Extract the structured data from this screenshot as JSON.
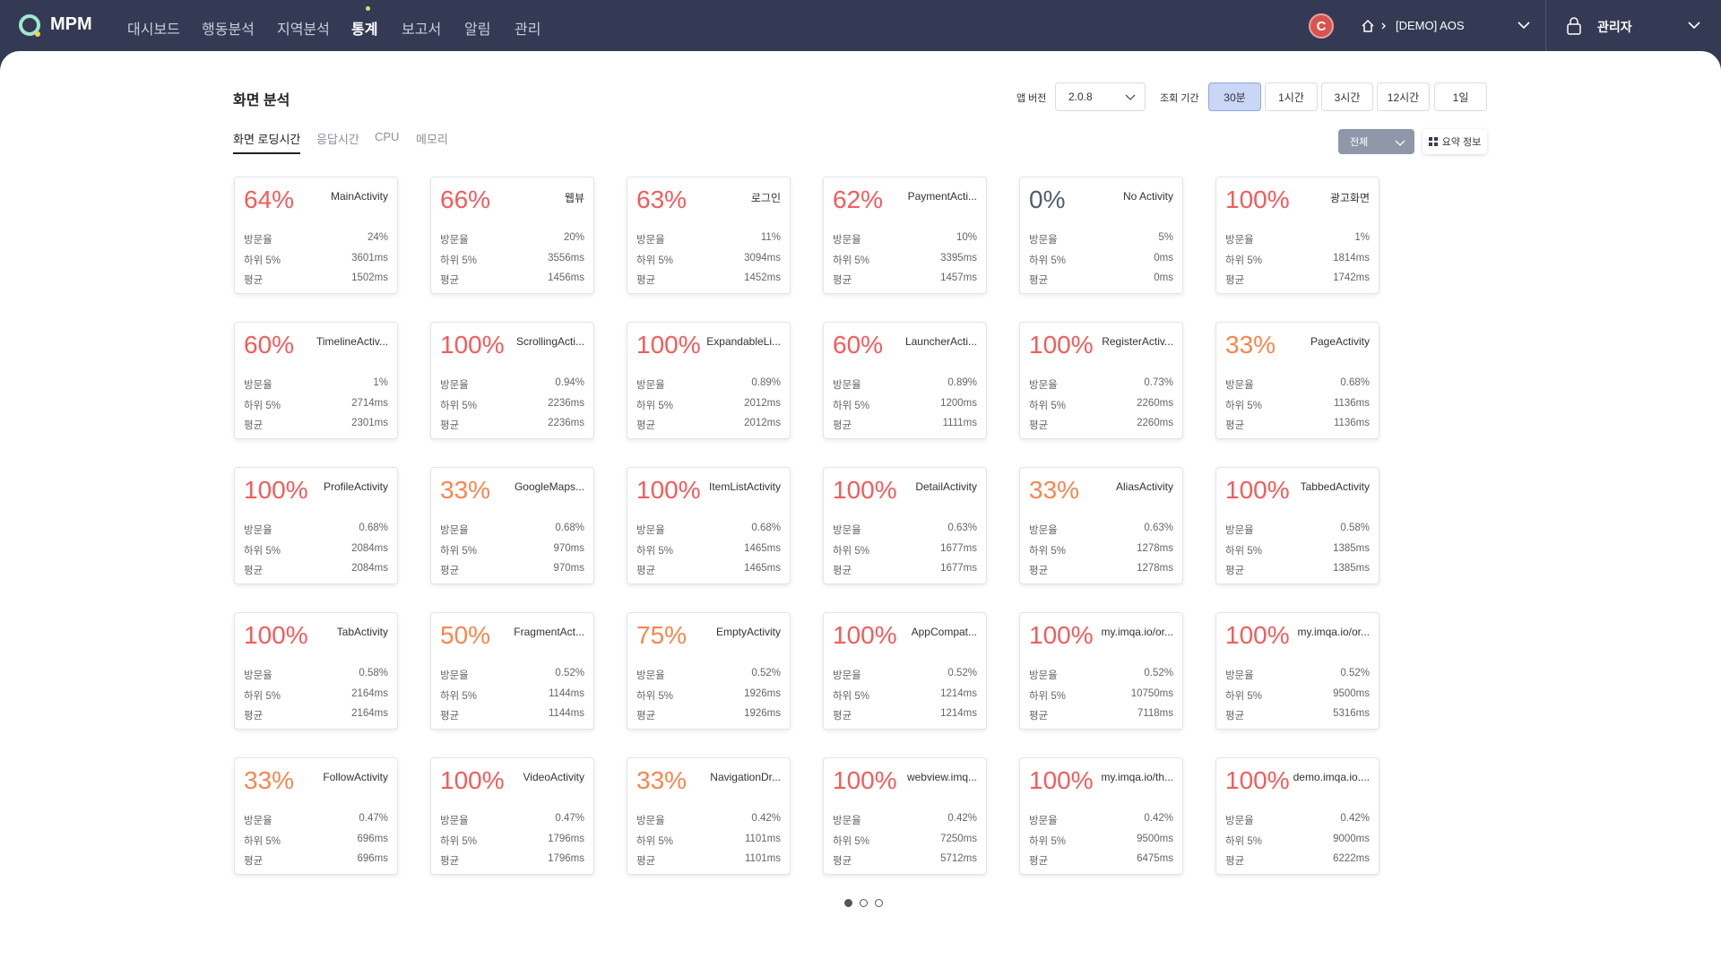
{
  "header": {
    "logo": "MPM",
    "nav": [
      "대시보드",
      "행동분석",
      "지역분석",
      "통계",
      "보고서",
      "알림",
      "관리"
    ],
    "active_nav": 3,
    "avatar": "C",
    "project": "[DEMO] AOS",
    "user": "관리자"
  },
  "toolbar": {
    "title": "화면 분석",
    "version_label": "앱 버전",
    "version": "2.0.8",
    "period_label": "조회 기간",
    "periods": [
      "30분",
      "1시간",
      "3시간",
      "12시간",
      "1일"
    ],
    "active_period": 0,
    "tabs": [
      "화면 로딩시간",
      "응답시간",
      "CPU",
      "메모리"
    ],
    "active_tab": 0,
    "filter": "전체",
    "summary": "요약 정보"
  },
  "row_labels": [
    "방문율",
    "하위 5%",
    "평균"
  ],
  "cards": [
    {
      "percent": "64%",
      "color": "#f25c5c",
      "name": "MainActivity",
      "values": [
        "24%",
        "3601ms",
        "1502ms"
      ]
    },
    {
      "percent": "66%",
      "color": "#f25c5c",
      "name": "웹뷰",
      "values": [
        "20%",
        "3556ms",
        "1456ms"
      ]
    },
    {
      "percent": "63%",
      "color": "#f25c5c",
      "name": "로그인",
      "values": [
        "11%",
        "3094ms",
        "1452ms"
      ]
    },
    {
      "percent": "62%",
      "color": "#f25c5c",
      "name": "PaymentActi...",
      "values": [
        "10%",
        "3395ms",
        "1457ms"
      ]
    },
    {
      "percent": "0%",
      "color": "#555b6e",
      "name": "No Activity",
      "values": [
        "5%",
        "0ms",
        "0ms"
      ]
    },
    {
      "percent": "100%",
      "color": "#f25c5c",
      "name": "광고화면",
      "values": [
        "1%",
        "1814ms",
        "1742ms"
      ]
    },
    {
      "percent": "60%",
      "color": "#f25c5c",
      "name": "TimelineActiv...",
      "values": [
        "1%",
        "2714ms",
        "2301ms"
      ]
    },
    {
      "percent": "100%",
      "color": "#f25c5c",
      "name": "ScrollingActi...",
      "values": [
        "0.94%",
        "2236ms",
        "2236ms"
      ]
    },
    {
      "percent": "100%",
      "color": "#f25c5c",
      "name": "ExpandableLi...",
      "values": [
        "0.89%",
        "2012ms",
        "2012ms"
      ]
    },
    {
      "percent": "60%",
      "color": "#f25c5c",
      "name": "LauncherActi...",
      "values": [
        "0.89%",
        "1200ms",
        "1111ms"
      ]
    },
    {
      "percent": "100%",
      "color": "#f25c5c",
      "name": "RegisterActiv...",
      "values": [
        "0.73%",
        "2260ms",
        "2260ms"
      ]
    },
    {
      "percent": "33%",
      "color": "#f5874f",
      "name": "PageActivity",
      "values": [
        "0.68%",
        "1136ms",
        "1136ms"
      ]
    },
    {
      "percent": "100%",
      "color": "#f25c5c",
      "name": "ProfileActivity",
      "values": [
        "0.68%",
        "2084ms",
        "2084ms"
      ]
    },
    {
      "percent": "33%",
      "color": "#f5874f",
      "name": "GoogleMaps...",
      "values": [
        "0.68%",
        "970ms",
        "970ms"
      ]
    },
    {
      "percent": "100%",
      "color": "#f25c5c",
      "name": "ItemListActivity",
      "values": [
        "0.68%",
        "1465ms",
        "1465ms"
      ]
    },
    {
      "percent": "100%",
      "color": "#f25c5c",
      "name": "DetailActivity",
      "values": [
        "0.63%",
        "1677ms",
        "1677ms"
      ]
    },
    {
      "percent": "33%",
      "color": "#f5874f",
      "name": "AliasActivity",
      "values": [
        "0.63%",
        "1278ms",
        "1278ms"
      ]
    },
    {
      "percent": "100%",
      "color": "#f25c5c",
      "name": "TabbedActivity",
      "values": [
        "0.58%",
        "1385ms",
        "1385ms"
      ]
    },
    {
      "percent": "100%",
      "color": "#f25c5c",
      "name": "TabActivity",
      "values": [
        "0.58%",
        "2164ms",
        "2164ms"
      ]
    },
    {
      "percent": "50%",
      "color": "#f5874f",
      "name": "FragmentAct...",
      "values": [
        "0.52%",
        "1144ms",
        "1144ms"
      ]
    },
    {
      "percent": "75%",
      "color": "#f5874f",
      "name": "EmptyActivity",
      "values": [
        "0.52%",
        "1926ms",
        "1926ms"
      ]
    },
    {
      "percent": "100%",
      "color": "#f25c5c",
      "name": "AppCompat...",
      "values": [
        "0.52%",
        "1214ms",
        "1214ms"
      ]
    },
    {
      "percent": "100%",
      "color": "#f25c5c",
      "name": "my.imqa.io/or...",
      "values": [
        "0.52%",
        "10750ms",
        "7118ms"
      ]
    },
    {
      "percent": "100%",
      "color": "#f25c5c",
      "name": "my.imqa.io/or...",
      "values": [
        "0.52%",
        "9500ms",
        "5316ms"
      ]
    },
    {
      "percent": "33%",
      "color": "#f5874f",
      "name": "FollowActivity",
      "values": [
        "0.47%",
        "696ms",
        "696ms"
      ]
    },
    {
      "percent": "100%",
      "color": "#f25c5c",
      "name": "VideoActivity",
      "values": [
        "0.47%",
        "1796ms",
        "1796ms"
      ]
    },
    {
      "percent": "33%",
      "color": "#f5874f",
      "name": "NavigationDr...",
      "values": [
        "0.42%",
        "1101ms",
        "1101ms"
      ]
    },
    {
      "percent": "100%",
      "color": "#f25c5c",
      "name": "webview.imq...",
      "values": [
        "0.42%",
        "7250ms",
        "5712ms"
      ]
    },
    {
      "percent": "100%",
      "color": "#f25c5c",
      "name": "my.imqa.io/th...",
      "values": [
        "0.42%",
        "9500ms",
        "6475ms"
      ]
    },
    {
      "percent": "100%",
      "color": "#f25c5c",
      "name": "demo.imqa.io....",
      "values": [
        "0.42%",
        "9000ms",
        "6222ms"
      ]
    }
  ],
  "pages": 3,
  "active_page": 0
}
